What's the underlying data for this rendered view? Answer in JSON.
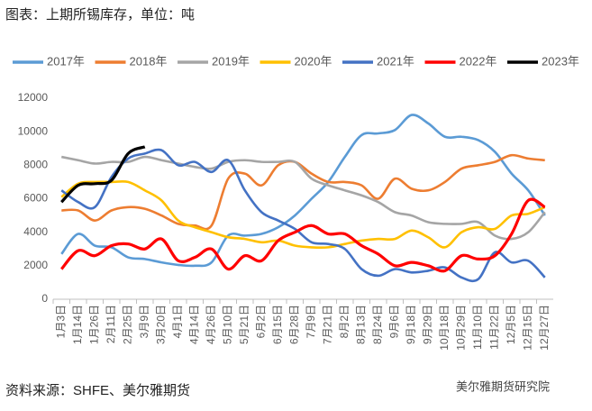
{
  "chart_data": {
    "type": "line",
    "title": "图表：上期所锡库存，单位：吨",
    "source": "资料来源：SHFE、美尔雅期货",
    "watermark": "美尔雅期货研究院",
    "categories": [
      "1月3日",
      "1月14日",
      "1月26日",
      "2月11日",
      "2月25日",
      "3月9日",
      "3月20日",
      "4月1日",
      "4月14日",
      "4月26日",
      "5月10日",
      "5月21日",
      "6月2日",
      "6月15日",
      "6月28日",
      "7月9日",
      "7月21日",
      "8月2日",
      "8月13日",
      "8月24日",
      "9月6日",
      "9月18日",
      "9月29日",
      "10月18日",
      "10月29日",
      "11月10日",
      "11月22日",
      "12月5日",
      "12月15日",
      "12月27日"
    ],
    "series": [
      {
        "name": "2017年",
        "color": "#5b9bd5",
        "values": [
          2700,
          3900,
          3200,
          3100,
          2500,
          2400,
          2200,
          2050,
          2000,
          2200,
          3800,
          3800,
          3900,
          4300,
          5000,
          6000,
          7000,
          8500,
          9800,
          9900,
          10100,
          11000,
          10500,
          9700,
          9700,
          9500,
          8800,
          7500,
          6500,
          5000
        ]
      },
      {
        "name": "2018年",
        "color": "#ed7d31",
        "values": [
          5300,
          5300,
          4700,
          5300,
          5500,
          5400,
          5000,
          4500,
          4400,
          4400,
          7200,
          7500,
          6800,
          8000,
          8200,
          7500,
          7000,
          7000,
          6800,
          6000,
          7200,
          6600,
          6500,
          7000,
          7800,
          8000,
          8200,
          8600,
          8400,
          8300
        ]
      },
      {
        "name": "2019年",
        "color": "#a5a5a5",
        "values": [
          8500,
          8300,
          8100,
          8200,
          8200,
          8500,
          8300,
          8100,
          7900,
          7800,
          8200,
          8300,
          8200,
          8200,
          8200,
          7200,
          6800,
          6500,
          6200,
          5800,
          5200,
          5000,
          4600,
          4500,
          4500,
          4600,
          3800,
          3600,
          4000,
          5200
        ]
      },
      {
        "name": "2020年",
        "color": "#ffc000",
        "values": [
          6100,
          6900,
          7000,
          7000,
          7000,
          6500,
          5900,
          4700,
          4300,
          4000,
          3700,
          3600,
          3400,
          3500,
          3200,
          3100,
          3100,
          3300,
          3500,
          3600,
          3600,
          4100,
          3700,
          3100,
          4000,
          4300,
          4200,
          5000,
          5100,
          5500
        ]
      },
      {
        "name": "2021年",
        "color": "#4472c4",
        "values": [
          6500,
          5800,
          5500,
          7300,
          8400,
          8700,
          8900,
          8000,
          8200,
          7600,
          8300,
          6500,
          5200,
          4700,
          4200,
          3400,
          3300,
          3000,
          1800,
          1400,
          1800,
          1600,
          1700,
          1900,
          1300,
          1200,
          2800,
          2200,
          2300,
          1300
        ]
      },
      {
        "name": "2022年",
        "color": "#ff0000",
        "values": [
          1800,
          2900,
          2600,
          3200,
          3300,
          3000,
          3600,
          2300,
          2500,
          3000,
          1800,
          2600,
          2300,
          3500,
          4000,
          4400,
          3900,
          3900,
          3200,
          2700,
          2000,
          2200,
          2000,
          1700,
          2600,
          2400,
          2600,
          3900,
          5900,
          5500
        ]
      },
      {
        "name": "2023年",
        "color": "#000000",
        "values": [
          5800,
          6800,
          6900,
          7100,
          8700,
          9100,
          null,
          null,
          null,
          null,
          null,
          null,
          null,
          null,
          null,
          null,
          null,
          null,
          null,
          null,
          null,
          null,
          null,
          null,
          null,
          null,
          null,
          null,
          null,
          null
        ]
      }
    ],
    "ylim": [
      0,
      12000
    ],
    "yticks": [
      0,
      2000,
      4000,
      6000,
      8000,
      10000,
      12000
    ],
    "grid": false
  }
}
